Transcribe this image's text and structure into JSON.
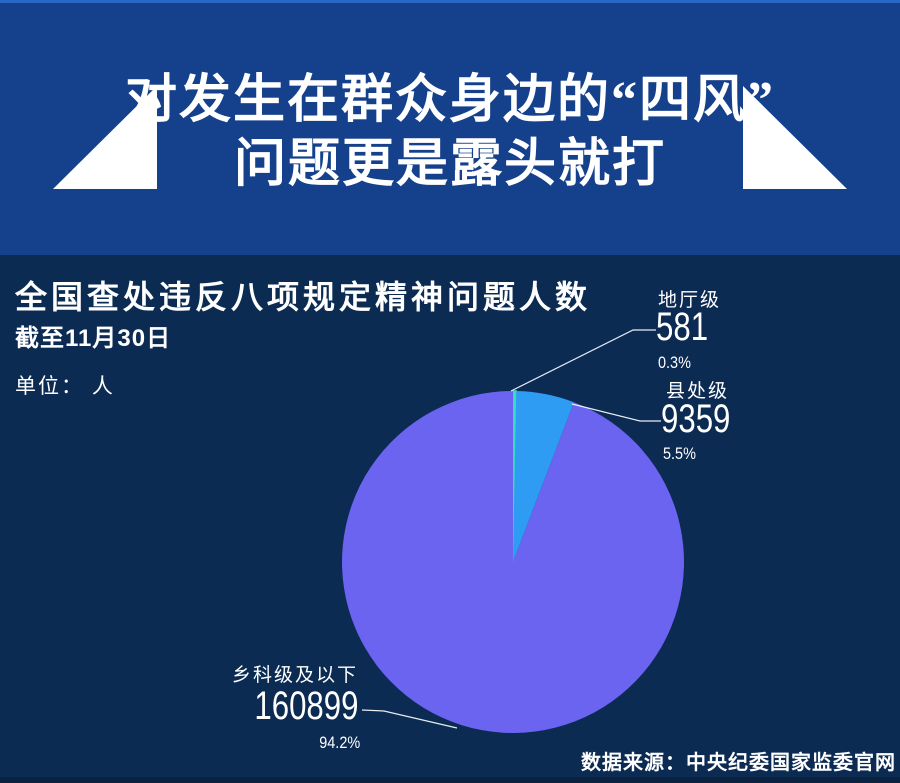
{
  "top_banner": {
    "title_line1": "对发生在群众身边的“四风”",
    "title_line2": "问题更是露头就打"
  },
  "chart_header": {
    "title": "全国查处违反八项规定精神问题人数",
    "date_note": "截至11月30日",
    "unit_label": "单位： 人"
  },
  "footer": {
    "source": "数据来源：中央纪委国家监委官网"
  },
  "chart_data": {
    "type": "pie",
    "title": "全国查处违反八项规定精神问题人数",
    "as_of": "截至11月30日",
    "unit": "人",
    "start_angle_deg": -90,
    "direction": "clockwise",
    "legend_position": "callout-labels",
    "slices": [
      {
        "label": "地厅级",
        "value": 581,
        "percent": "0.3%",
        "color": "#3cd9c9"
      },
      {
        "label": "县处级",
        "value": 9359,
        "percent": "5.5%",
        "color": "#2f9cf3"
      },
      {
        "label": "乡科级及以下",
        "value": 160899,
        "percent": "94.2%",
        "color": "#6b64f1"
      }
    ]
  },
  "colors": {
    "banner_bg": "#15418c",
    "section_bg": "#0c2b53",
    "top_line": "#2a68c8",
    "leader_line": "#e8edf4",
    "text": "#ffffff"
  }
}
